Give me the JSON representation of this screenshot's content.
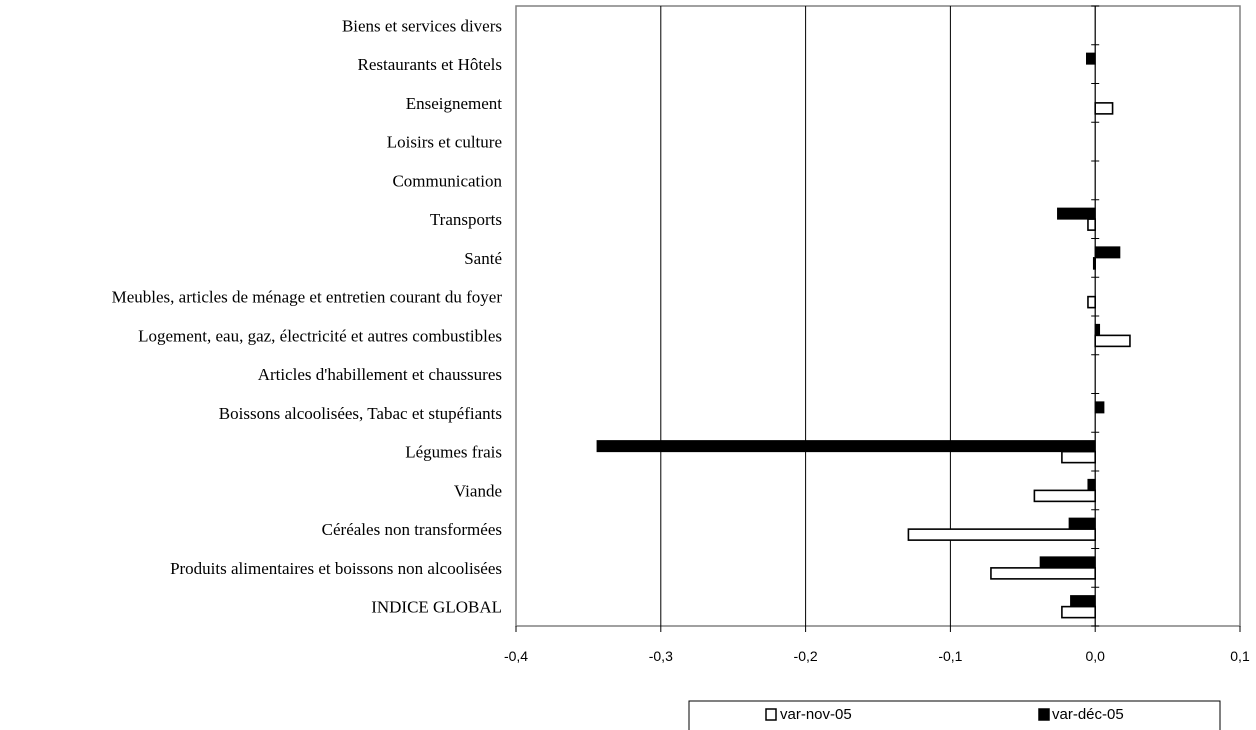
{
  "chart_data": {
    "type": "bar",
    "orientation": "horizontal",
    "categories": [
      "INDICE GLOBAL",
      "Produits alimentaires et boissons non alcoolisées",
      "Céréales non transformées",
      "Viande",
      "Légumes frais",
      "Boissons alcoolisées,  Tabac et stupéfiants",
      "Articles d'habillement et chaussures",
      "Logement, eau, gaz, électricité et autres combustibles",
      "Meubles, articles de ménage et entretien courant du foyer",
      "Santé",
      "Transports",
      "Communication",
      "Loisirs et culture",
      "Enseignement",
      "Restaurants et Hôtels",
      "Biens et services divers"
    ],
    "series": [
      {
        "name": "var-nov-05",
        "color": "#ffffff",
        "values": [
          -0.023,
          -0.072,
          -0.129,
          -0.042,
          -0.023,
          0.0,
          0.0,
          0.024,
          -0.005,
          -0.001,
          -0.005,
          0.0,
          0.0,
          0.012,
          0.0,
          0.0
        ]
      },
      {
        "name": "var-déc-05",
        "color": "#000000",
        "values": [
          -0.017,
          -0.038,
          -0.018,
          -0.005,
          -0.344,
          0.006,
          0.0,
          0.003,
          0.0,
          0.017,
          -0.026,
          0.0,
          0.0,
          0.0,
          -0.006,
          0.0
        ]
      }
    ],
    "xlim": [
      -0.4,
      0.1
    ],
    "xticks": [
      "-0,4",
      "-0,3",
      "-0,2",
      "-0,1",
      "0,0",
      "0,1"
    ],
    "xtick_values": [
      -0.4,
      -0.3,
      -0.2,
      -0.1,
      0.0,
      0.1
    ],
    "grid": "vertical gridlines",
    "legend": "bottom-right",
    "title": "",
    "xlabel": "",
    "ylabel": ""
  }
}
